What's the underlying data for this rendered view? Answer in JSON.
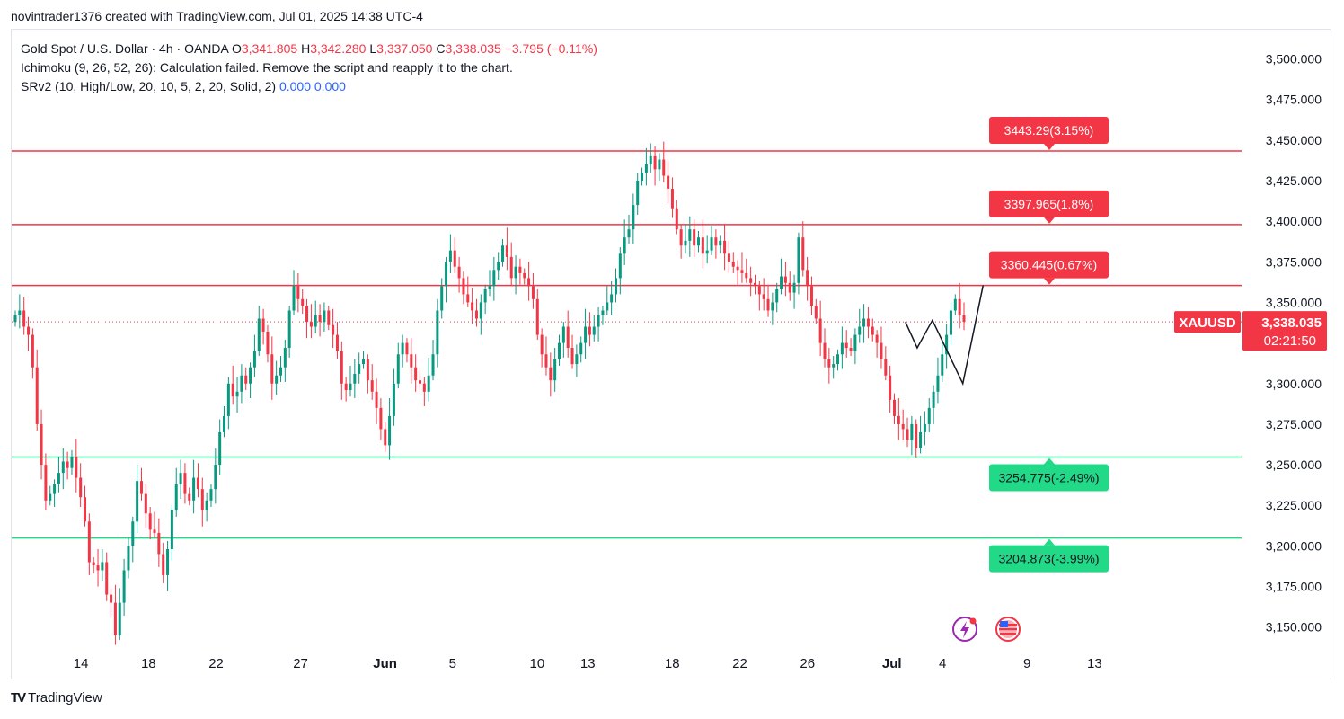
{
  "header": {
    "attribution": "novintrader1376 created with TradingView.com, Jul 01, 2025 14:38 UTC-4"
  },
  "legend": {
    "symbol": "Gold Spot / U.S. Dollar · 4h · OANDA",
    "o_label": "O",
    "o_value": "3,341.805",
    "h_label": "H",
    "h_value": "3,342.280",
    "l_label": "L",
    "l_value": "3,337.050",
    "c_label": "C",
    "c_value": "3,338.035",
    "change": "−3.795 (−0.11%)",
    "ichimoku": "Ichimoku (9, 26, 52, 26): Calculation failed. Remove the script and reapply it to the chart.",
    "srv2": "SRv2 (10, High/Low, 20, 10, 5, 2, 20, Solid, 2)",
    "srv2_v1": "0.000",
    "srv2_v2": "0.000"
  },
  "footer": {
    "brand": "TradingView"
  },
  "colors": {
    "up": "#089981",
    "down": "#f23645",
    "resistance": "#f23645",
    "support": "#22d987",
    "axis_text": "#131722",
    "projection": "#131722"
  },
  "chart_data": {
    "type": "candlestick",
    "symbol_tag": "XAUUSD",
    "last_price": 3338.035,
    "last_price_label": "3,338.035",
    "countdown": "02:21:50",
    "ylim": [
      3136,
      3518
    ],
    "y_ticks": [
      3150,
      3175,
      3200,
      3225,
      3250,
      3275,
      3300,
      3325,
      3350,
      3375,
      3400,
      3425,
      3450,
      3475,
      3500
    ],
    "y_tick_labels": [
      "3,150.000",
      "3,175.000",
      "3,200.000",
      "3,225.000",
      "3,250.000",
      "3,275.000",
      "3,300.000",
      "3,325.000",
      "3,350.000",
      "3,375.000",
      "3,400.000",
      "3,425.000",
      "3,450.000",
      "3,475.000",
      "3,500.000"
    ],
    "x_labels": [
      "14",
      "18",
      "22",
      "27",
      "Jun",
      "5",
      "10",
      "13",
      "18",
      "22",
      "26",
      "Jul",
      "4",
      "9",
      "13"
    ],
    "x_label_days": [
      0,
      4,
      8,
      13,
      18,
      22,
      27,
      30,
      35,
      39,
      43,
      48,
      51,
      56,
      60
    ],
    "days_visible": [
      -4.1,
      68.7
    ],
    "levels": [
      {
        "price": 3443.29,
        "label": "3443.29(3.15%)",
        "kind": "resistance"
      },
      {
        "price": 3397.965,
        "label": "3397.965(1.8%)",
        "kind": "resistance"
      },
      {
        "price": 3360.445,
        "label": "3360.445(0.67%)",
        "kind": "resistance"
      },
      {
        "price": 3254.775,
        "label": "3254.775(-2.49%)",
        "kind": "support"
      },
      {
        "price": 3204.873,
        "label": "3204.873(-3.99%)",
        "kind": "support"
      }
    ],
    "projection_path": [
      [
        48.8,
        3338
      ],
      [
        49.5,
        3322
      ],
      [
        50.4,
        3339
      ],
      [
        52.2,
        3300
      ],
      [
        53.4,
        3360.445
      ]
    ],
    "closes": [
      3342,
      3345,
      3335,
      3330,
      3310,
      3275,
      3250,
      3228,
      3232,
      3238,
      3245,
      3252,
      3248,
      3255,
      3242,
      3230,
      3215,
      3190,
      3188,
      3185,
      3190,
      3170,
      3165,
      3145,
      3165,
      3185,
      3200,
      3215,
      3240,
      3232,
      3220,
      3210,
      3208,
      3195,
      3182,
      3198,
      3222,
      3238,
      3245,
      3232,
      3228,
      3242,
      3235,
      3222,
      3228,
      3235,
      3250,
      3270,
      3280,
      3300,
      3292,
      3295,
      3305,
      3300,
      3310,
      3320,
      3340,
      3332,
      3318,
      3300,
      3305,
      3310,
      3322,
      3345,
      3360,
      3352,
      3348,
      3338,
      3335,
      3342,
      3338,
      3345,
      3336,
      3330,
      3320,
      3300,
      3296,
      3300,
      3306,
      3312,
      3315,
      3302,
      3295,
      3285,
      3272,
      3262,
      3280,
      3300,
      3318,
      3325,
      3318,
      3310,
      3302,
      3300,
      3295,
      3305,
      3318,
      3345,
      3360,
      3375,
      3382,
      3372,
      3365,
      3355,
      3350,
      3345,
      3340,
      3350,
      3358,
      3360,
      3370,
      3375,
      3385,
      3378,
      3365,
      3372,
      3368,
      3365,
      3360,
      3352,
      3330,
      3318,
      3310,
      3302,
      3315,
      3325,
      3335,
      3322,
      3312,
      3318,
      3325,
      3335,
      3330,
      3335,
      3342,
      3345,
      3350,
      3355,
      3365,
      3380,
      3390,
      3395,
      3410,
      3425,
      3430,
      3435,
      3440,
      3432,
      3438,
      3428,
      3420,
      3408,
      3395,
      3385,
      3388,
      3395,
      3385,
      3390,
      3380,
      3382,
      3390,
      3385,
      3388,
      3380,
      3375,
      3372,
      3370,
      3368,
      3365,
      3362,
      3360,
      3355,
      3352,
      3345,
      3350,
      3358,
      3366,
      3362,
      3356,
      3362,
      3390,
      3370,
      3360,
      3348,
      3340,
      3325,
      3315,
      3310,
      3312,
      3318,
      3325,
      3322,
      3320,
      3330,
      3335,
      3340,
      3335,
      3330,
      3325,
      3315,
      3305,
      3290,
      3280,
      3275,
      3272,
      3265,
      3275,
      3260,
      3270,
      3275,
      3285,
      3295,
      3305,
      3318,
      3330,
      3345,
      3352,
      3342,
      3338
    ]
  }
}
